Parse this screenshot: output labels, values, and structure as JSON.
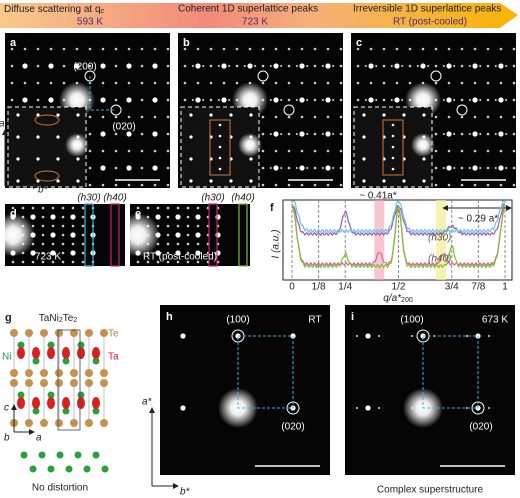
{
  "header": {
    "s1": {
      "text": "Diffuse scattering at q",
      "sub": "c",
      "temp": "593 K"
    },
    "s2": {
      "text": "Coherent 1D superlattice peaks",
      "temp": "723 K"
    },
    "s3": {
      "text": "Irreversible 1D superlattice peaks",
      "temp": "RT (post-cooled)"
    }
  },
  "panel_a": {
    "letter": "a",
    "peak1": "(200)",
    "peak2": "(020)"
  },
  "panel_b": {
    "letter": "b"
  },
  "panel_c": {
    "letter": "c"
  },
  "axes_top": {
    "y": "a*",
    "x": "b*"
  },
  "panel_d": {
    "letter": "d",
    "col1": "(h30)",
    "col2": "(h40)",
    "caption": "723 K"
  },
  "panel_e": {
    "letter": "e",
    "col1": "(h30)",
    "col2": "(h40)",
    "caption": "RT (post-cooled)"
  },
  "panel_f": {
    "letter": "f",
    "annotation1": "~ 0.41a*",
    "annotation2": "~ 0.29 a*",
    "ylabel": "I (a.u.)",
    "xlabel": "q/a*",
    "xlabel_sub": "200",
    "curve1": "(h30)",
    "curve2": "(h40)",
    "xticks": [
      "0",
      "1/8",
      "1/4",
      "1/2",
      "3/4",
      "7/8",
      "1"
    ]
  },
  "panel_g": {
    "letter": "g",
    "formula": [
      "TaNi",
      "2",
      "Te",
      "2"
    ],
    "atoms": [
      "Te",
      "Ni",
      "Ta"
    ],
    "axes": [
      "c",
      "b",
      "a"
    ],
    "caption": "No distortion"
  },
  "panel_h": {
    "letter": "h",
    "peak1": "(100)",
    "temp": "RT",
    "peak2": "(020)",
    "axes": [
      "a*",
      "b*"
    ]
  },
  "panel_i": {
    "letter": "i",
    "peak1": "(100)",
    "temp": "673 K",
    "peak2": "(020)",
    "caption": "Complex superstructure"
  }
}
